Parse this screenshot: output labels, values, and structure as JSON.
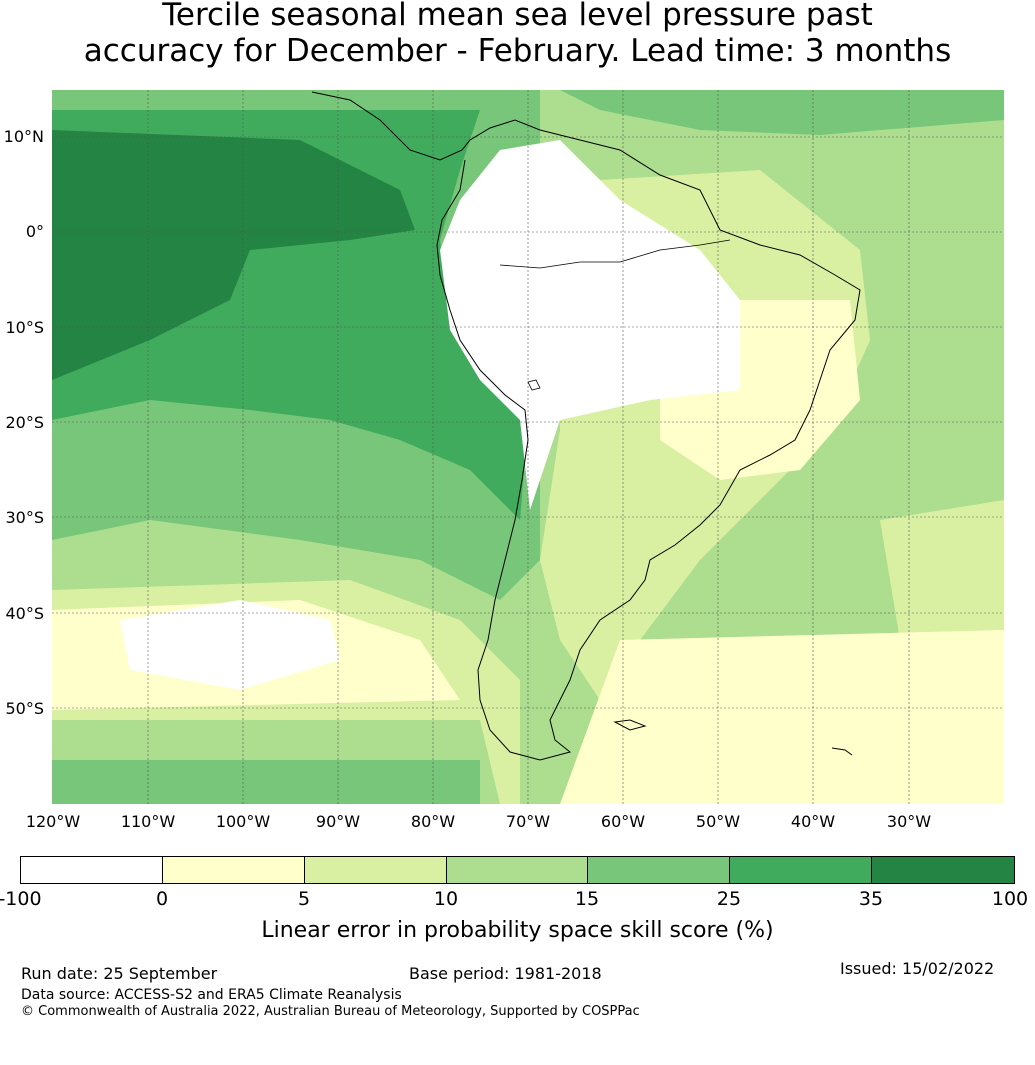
{
  "title_line1": "Tercile seasonal mean sea level pressure past",
  "title_line2": "accuracy for December - February. Lead time: 3 months",
  "lat_labels": [
    "10°N",
    "0°",
    "10°S",
    "20°S",
    "30°S",
    "40°S",
    "50°S"
  ],
  "lon_labels": [
    "120°W",
    "110°W",
    "100°W",
    "90°W",
    "80°W",
    "70°W",
    "60°W",
    "50°W",
    "40°W",
    "30°W"
  ],
  "colorbar": {
    "label": "Linear error in probability space skill score (%)",
    "ticks": [
      "-100",
      "0",
      "5",
      "10",
      "15",
      "25",
      "35",
      "100"
    ],
    "colors": [
      "#ffffff",
      "#ffffcc",
      "#d9f0a3",
      "#addd8e",
      "#78c679",
      "#41ab5d",
      "#238443"
    ]
  },
  "footer": {
    "run_date": "Run date: 25 September",
    "base_period": "Base period: 1981-2018",
    "issued": "Issued: 15/02/2022",
    "data_source": "Data source: ACCESS-S2 and ERA5 Climate Reanalysis",
    "copyright": "© Commonwealth of Australia 2022, Australian Bureau of Meteorology, Supported by COSPPac"
  }
}
